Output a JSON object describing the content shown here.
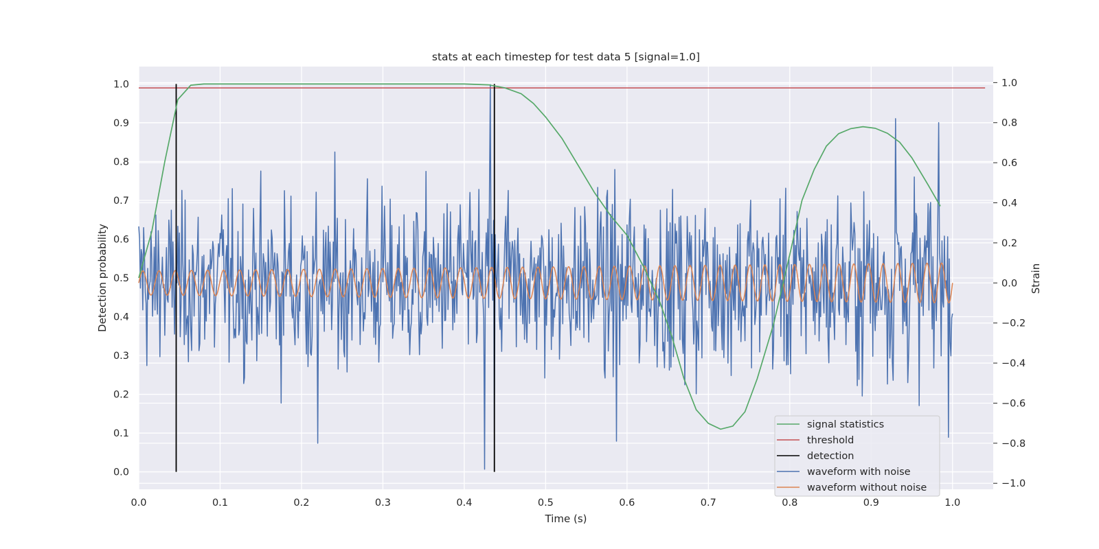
{
  "chart_data": {
    "type": "line",
    "title": "stats at each timestep for test data 5 [signal=1.0]",
    "xlabel": "Time (s)",
    "ylabel": "Detection probability",
    "ylabel_right": "Strain",
    "xlim": [
      0.0,
      1.05
    ],
    "ylim": [
      -0.045,
      1.045
    ],
    "ylim_right": [
      -1.03,
      1.08
    ],
    "x_ticks": [
      "0.0",
      "0.1",
      "0.2",
      "0.3",
      "0.4",
      "0.5",
      "0.6",
      "0.7",
      "0.8",
      "0.9",
      "1.0"
    ],
    "y_ticks": [
      "0.0",
      "0.1",
      "0.2",
      "0.3",
      "0.4",
      "0.5",
      "0.6",
      "0.7",
      "0.8",
      "0.9",
      "1.0"
    ],
    "y_ticks_right": [
      "−1.0",
      "−0.8",
      "−0.6",
      "−0.4",
      "−0.2",
      "0.0",
      "0.2",
      "0.4",
      "0.6",
      "0.8",
      "1.0"
    ],
    "grid": true,
    "legend_position": "lower-right",
    "series": [
      {
        "name": "signal statistics",
        "color": "#55a868",
        "axis": "left",
        "x": [
          0.0,
          0.016,
          0.032,
          0.048,
          0.064,
          0.08,
          0.1,
          0.2,
          0.3,
          0.4,
          0.43,
          0.45,
          0.47,
          0.485,
          0.5,
          0.52,
          0.54,
          0.56,
          0.58,
          0.6,
          0.62,
          0.64,
          0.655,
          0.67,
          0.685,
          0.7,
          0.715,
          0.73,
          0.745,
          0.76,
          0.78,
          0.8,
          0.815,
          0.83,
          0.845,
          0.86,
          0.875,
          0.89,
          0.905,
          0.92,
          0.935,
          0.95,
          0.97,
          0.985
        ],
        "values": [
          0.5,
          0.62,
          0.8,
          0.96,
          0.997,
          1.0,
          1.0,
          1.0,
          1.0,
          1.0,
          0.998,
          0.99,
          0.975,
          0.95,
          0.915,
          0.86,
          0.79,
          0.72,
          0.66,
          0.61,
          0.53,
          0.44,
          0.35,
          0.24,
          0.16,
          0.125,
          0.11,
          0.118,
          0.155,
          0.24,
          0.38,
          0.56,
          0.7,
          0.78,
          0.84,
          0.872,
          0.885,
          0.89,
          0.886,
          0.873,
          0.85,
          0.81,
          0.74,
          0.685
        ]
      },
      {
        "name": "threshold",
        "color": "#c44e52",
        "axis": "left",
        "x": [
          0.0,
          1.04
        ],
        "values": [
          0.99,
          0.99
        ]
      },
      {
        "name": "detection",
        "color": "#000000",
        "axis": "left",
        "x_positions": [
          0.046,
          0.437
        ],
        "range": [
          0.0,
          1.0
        ]
      },
      {
        "name": "waveform with noise",
        "color": "#4c72b0",
        "axis": "right",
        "description_of_values": "noisy strain, roughly gaussian, std ~0.3, range about -0.95 to 1.0",
        "x_range": [
          0.0,
          1.0
        ],
        "spikes": [
          [
            0.425,
            -0.93
          ],
          [
            0.432,
            0.99
          ],
          [
            0.437,
            -0.75
          ],
          [
            0.22,
            -0.8
          ],
          [
            0.587,
            -0.79
          ],
          [
            0.93,
            0.82
          ],
          [
            0.983,
            0.8
          ]
        ]
      },
      {
        "name": "waveform without noise",
        "color": "#dd8452",
        "axis": "right",
        "x_range": [
          0.0,
          1.0
        ],
        "amplitude_start": 0.06,
        "amplitude_end": 0.1,
        "cycles": 50
      }
    ]
  }
}
